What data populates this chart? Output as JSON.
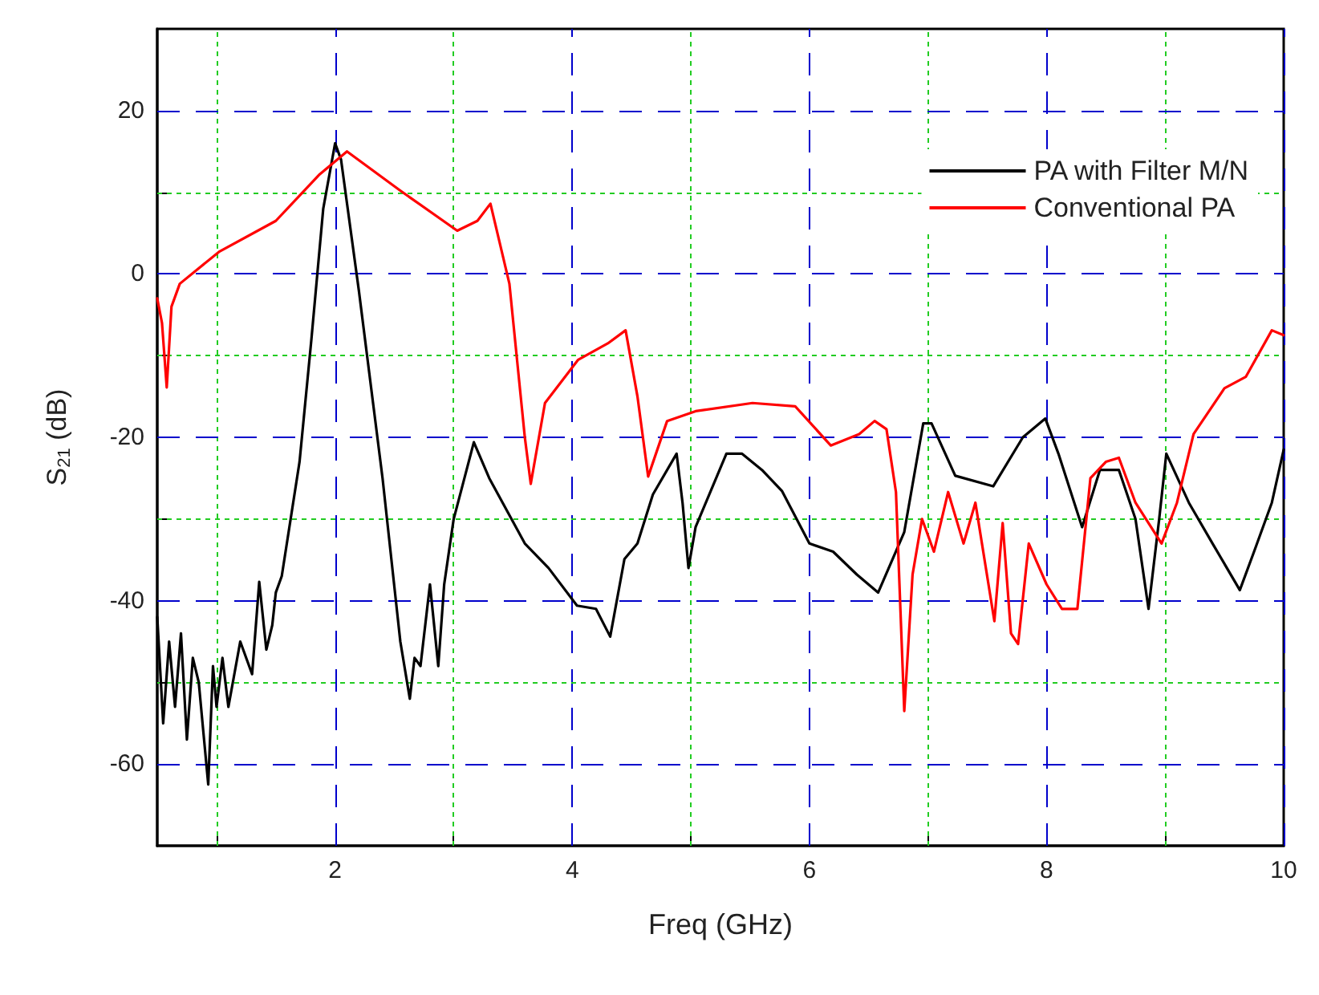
{
  "chart_data": {
    "type": "line",
    "xlabel": "Freq (GHz)",
    "ylabel": "S$_{21}$ (dB)",
    "xlim": [
      0.5,
      10
    ],
    "ylim": [
      -70,
      30
    ],
    "xticks": [
      {
        "value": 1,
        "label": null
      },
      2,
      {
        "value": 3,
        "label": null
      },
      4,
      {
        "value": 5,
        "label": null
      },
      6,
      {
        "value": 7,
        "label": null
      },
      8,
      {
        "value": 9,
        "label": null
      },
      10
    ],
    "yticks": [
      -60,
      {
        "value": -50,
        "label": null
      },
      -40,
      {
        "value": -30,
        "label": null
      },
      -20,
      {
        "value": -10,
        "label": null
      },
      0,
      {
        "value": 10,
        "label": null
      },
      20
    ],
    "grid": true,
    "legend": "top right",
    "marker": "none",
    "line_style": "solid",
    "series": [
      {
        "name": "PA with Filter M/N",
        "color": "#000000",
        "x": [
          0.5,
          0.55,
          0.6,
          0.65,
          0.7,
          0.75,
          0.8,
          0.85,
          0.93,
          0.97,
          1.0,
          1.05,
          1.1,
          1.2,
          1.3,
          1.36,
          1.42,
          1.47,
          1.5,
          1.55,
          1.7,
          1.8,
          1.9,
          2.0,
          2.05,
          2.2,
          2.4,
          2.55,
          2.63,
          2.67,
          2.72,
          2.8,
          2.87,
          2.92,
          3.0,
          3.17,
          3.3,
          3.6,
          3.8,
          4.04,
          4.2,
          4.32,
          4.44,
          4.55,
          4.68,
          4.88,
          4.93,
          4.98,
          5.04,
          5.3,
          5.43,
          5.6,
          5.77,
          6.0,
          6.2,
          6.4,
          6.58,
          6.8,
          6.96,
          7.03,
          7.23,
          7.55,
          7.8,
          7.99,
          8.1,
          8.3,
          8.45,
          8.61,
          8.75,
          8.86,
          8.95,
          9.01,
          9.2,
          9.4,
          9.63,
          9.75,
          9.9,
          10.0
        ],
        "values": [
          -42,
          -55,
          -45,
          -53,
          -44,
          -57,
          -47,
          -50,
          -62.5,
          -48,
          -53,
          -47,
          -53,
          -45,
          -49,
          -37.7,
          -46,
          -43,
          -39,
          -37,
          -23,
          -8,
          8,
          16,
          14,
          -2,
          -25,
          -45,
          -52,
          -47,
          -48,
          -38,
          -48,
          -38,
          -30,
          -20.6,
          -25,
          -33,
          -36,
          -40.6,
          -41,
          -44.4,
          -34.9,
          -33,
          -27,
          -22,
          -28,
          -36,
          -31,
          -22,
          -22,
          -24,
          -26.6,
          -33,
          -34,
          -36.8,
          -39,
          -31.6,
          -18.3,
          -18.3,
          -24.7,
          -26,
          -20,
          -17.7,
          -22,
          -31,
          -24,
          -24,
          -30,
          -41,
          -30,
          -22,
          -28,
          -33,
          -38.7,
          -34,
          -28,
          -21.5
        ]
      },
      {
        "name": "Conventional PA",
        "color": "#ff0000",
        "x": [
          0.5,
          0.54,
          0.58,
          0.62,
          0.69,
          1.02,
          1.5,
          1.87,
          2.1,
          2.54,
          3.03,
          3.2,
          3.31,
          3.47,
          3.6,
          3.65,
          3.77,
          4.05,
          4.3,
          4.45,
          4.55,
          4.64,
          4.8,
          5.04,
          5.52,
          5.88,
          6.18,
          6.42,
          6.55,
          6.65,
          6.73,
          6.8,
          6.87,
          6.95,
          7.05,
          7.17,
          7.3,
          7.4,
          7.56,
          7.63,
          7.7,
          7.76,
          7.85,
          8.0,
          8.13,
          8.26,
          8.37,
          8.5,
          8.61,
          8.75,
          8.97,
          9.1,
          9.24,
          9.5,
          9.68,
          9.9,
          10.0
        ],
        "values": [
          -3,
          -6,
          -13.9,
          -4,
          -1.2,
          2.7,
          6.5,
          12.2,
          15,
          10.3,
          5.3,
          6.5,
          8.6,
          -1.2,
          -20,
          -25.7,
          -15.8,
          -10.5,
          -8.5,
          -6.9,
          -15,
          -24.8,
          -18,
          -16.8,
          -15.8,
          -16.2,
          -21,
          -19.6,
          -18,
          -19,
          -26.7,
          -53.5,
          -36.8,
          -30,
          -34,
          -26.7,
          -33,
          -28,
          -42.5,
          -30.5,
          -44,
          -45.3,
          -33,
          -38,
          -41,
          -41,
          -25,
          -23,
          -22.5,
          -28,
          -33,
          -28,
          -19.6,
          -14,
          -12.6,
          -6.9,
          -7.5
        ]
      }
    ]
  }
}
